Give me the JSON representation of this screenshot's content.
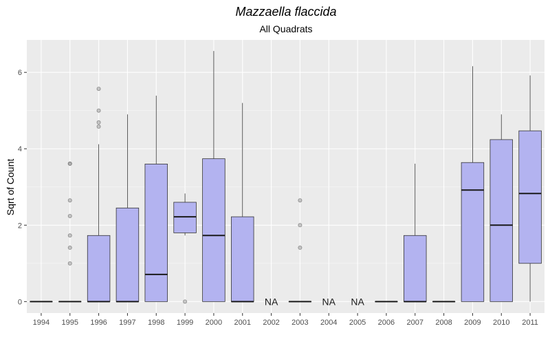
{
  "chart_data": {
    "type": "boxplot",
    "title": "Mazzaella flaccida",
    "subtitle": "All Quadrats",
    "xlabel": "",
    "ylabel": "Sqrt of Count",
    "ylim": [
      -0.3,
      6.85
    ],
    "yticks": [
      0,
      2,
      4,
      6
    ],
    "grid": true,
    "categories": [
      "1994",
      "1995",
      "1996",
      "1997",
      "1998",
      "1999",
      "2000",
      "2001",
      "2002",
      "2003",
      "2004",
      "2005",
      "2006",
      "2007",
      "2008",
      "2009",
      "2010",
      "2011"
    ],
    "missing_label": "NA",
    "box_color": "#b3b3f0",
    "boxes": [
      {
        "x": "1994",
        "min": 0,
        "q1": 0,
        "median": 0,
        "q3": 0,
        "max": 0,
        "outliers": []
      },
      {
        "x": "1995",
        "min": 0,
        "q1": 0,
        "median": 0,
        "q3": 0,
        "max": 0,
        "outliers": [
          1.0,
          1.41,
          1.73,
          2.24,
          2.65,
          3.61,
          3.61
        ]
      },
      {
        "x": "1996",
        "min": 0,
        "q1": 0,
        "median": 0,
        "q3": 1.73,
        "max": 4.12,
        "outliers": [
          4.58,
          4.69,
          5.0,
          5.57
        ]
      },
      {
        "x": "1997",
        "min": 0,
        "q1": 0,
        "median": 0,
        "q3": 2.45,
        "max": 4.9,
        "outliers": []
      },
      {
        "x": "1998",
        "min": 0,
        "q1": 0,
        "median": 0.71,
        "q3": 3.6,
        "max": 5.39,
        "outliers": []
      },
      {
        "x": "1999",
        "min": 1.73,
        "q1": 1.8,
        "median": 2.22,
        "q3": 2.6,
        "max": 2.83,
        "outliers": [
          0
        ]
      },
      {
        "x": "2000",
        "min": 0,
        "q1": 0,
        "median": 1.73,
        "q3": 3.74,
        "max": 6.56,
        "outliers": []
      },
      {
        "x": "2001",
        "min": 0,
        "q1": 0,
        "median": 0,
        "q3": 2.22,
        "max": 5.2,
        "outliers": []
      },
      {
        "x": "2002",
        "na": true
      },
      {
        "x": "2003",
        "min": 0,
        "q1": 0,
        "median": 0,
        "q3": 0,
        "max": 0,
        "outliers": [
          1.41,
          2.0,
          2.65
        ]
      },
      {
        "x": "2004",
        "na": true
      },
      {
        "x": "2005",
        "na": true
      },
      {
        "x": "2006",
        "min": 0,
        "q1": 0,
        "median": 0,
        "q3": 0,
        "max": 0,
        "outliers": []
      },
      {
        "x": "2007",
        "min": 0,
        "q1": 0,
        "median": 0,
        "q3": 1.73,
        "max": 3.61,
        "outliers": []
      },
      {
        "x": "2008",
        "min": 0,
        "q1": 0,
        "median": 0,
        "q3": 0,
        "max": 0,
        "outliers": []
      },
      {
        "x": "2009",
        "min": 0,
        "q1": 0,
        "median": 2.92,
        "q3": 3.64,
        "max": 6.16,
        "outliers": []
      },
      {
        "x": "2010",
        "min": 0,
        "q1": 0,
        "median": 2.0,
        "q3": 4.24,
        "max": 4.9,
        "outliers": []
      },
      {
        "x": "2011",
        "min": 0,
        "q1": 1.0,
        "median": 2.83,
        "q3": 4.47,
        "max": 5.92,
        "outliers": []
      }
    ]
  }
}
